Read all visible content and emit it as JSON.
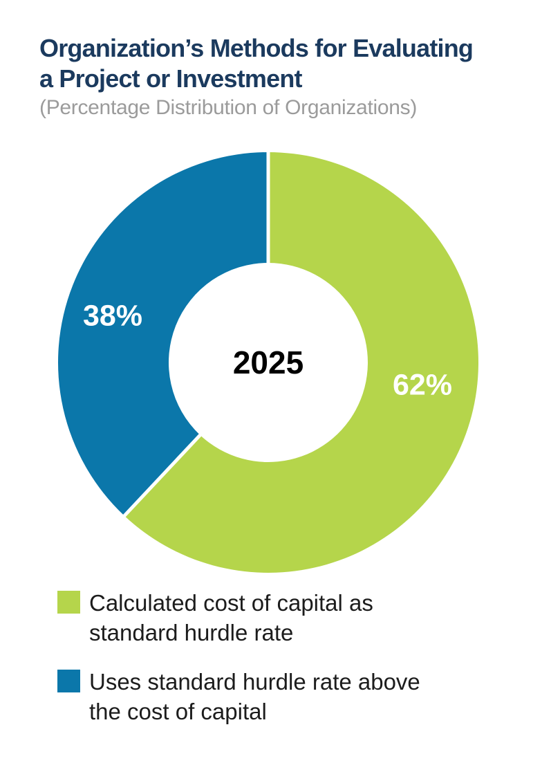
{
  "header": {
    "title_lines": [
      "Organization’s Methods for Evaluating",
      "a Project or Investment"
    ],
    "subtitle": "(Percentage Distribution of Organizations)"
  },
  "chart_data": {
    "type": "pie",
    "subtype": "donut",
    "title": "Organization’s Methods for Evaluating a Project or Investment",
    "subtitle": "(Percentage Distribution of Organizations)",
    "center_label": "2025",
    "categories": [
      "Calculated cost of capital as standard hurdle rate",
      "Uses standard hurdle rate above the cost of capital"
    ],
    "values": [
      62,
      38
    ],
    "value_labels": [
      "62%",
      "38%"
    ],
    "colors": [
      "#b5d54b",
      "#0b77aa"
    ],
    "start_angle_deg": 0,
    "direction": "clockwise",
    "inner_radius_ratio": 0.473,
    "separator_color": "#ffffff",
    "legend_position": "bottom"
  },
  "legend": {
    "items": [
      {
        "color": "#b5d54b",
        "lines": [
          "Calculated cost of capital as",
          "standard hurdle rate"
        ]
      },
      {
        "color": "#0b77aa",
        "lines": [
          "Uses standard hurdle rate above",
          "the cost of capital"
        ]
      }
    ]
  },
  "palette": {
    "title_navy": "#1b3a5e",
    "subtitle_gray": "#9b9b9b",
    "green": "#b5d54b",
    "blue": "#0b77aa",
    "legend_text": "#1c1c1c",
    "center_text": "#000000",
    "slice_label_text": "#ffffff",
    "background": "#ffffff"
  }
}
